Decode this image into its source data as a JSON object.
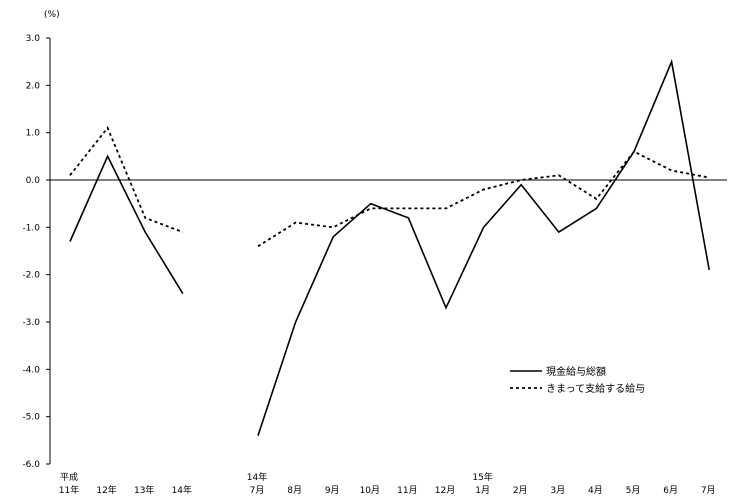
{
  "chart_data": {
    "type": "line",
    "unit_label": "(%)",
    "ylim": [
      -6.0,
      3.0
    ],
    "y_ticks": [
      "3.0",
      "2.0",
      "1.0",
      "0.0",
      "-1.0",
      "-2.0",
      "-3.0",
      "-4.0",
      "-5.0",
      "-6.0"
    ],
    "y_tick_values": [
      3,
      2,
      1,
      0,
      -1,
      -2,
      -3,
      -4,
      -5,
      -6
    ],
    "x_labels": [
      {
        "line1": "平成",
        "line2": "11年"
      },
      {
        "line1": "",
        "line2": "12年"
      },
      {
        "line1": "",
        "line2": "13年"
      },
      {
        "line1": "",
        "line2": "14年"
      },
      {
        "line1": "",
        "line2": ""
      },
      {
        "line1": "14年",
        "line2": "7月"
      },
      {
        "line1": "",
        "line2": "8月"
      },
      {
        "line1": "",
        "line2": "9月"
      },
      {
        "line1": "",
        "line2": "10月"
      },
      {
        "line1": "",
        "line2": "11月"
      },
      {
        "line1": "",
        "line2": "12月"
      },
      {
        "line1": "15年",
        "line2": "1月"
      },
      {
        "line1": "",
        "line2": "2月"
      },
      {
        "line1": "",
        "line2": "3月"
      },
      {
        "line1": "",
        "line2": "4月"
      },
      {
        "line1": "",
        "line2": "5月"
      },
      {
        "line1": "",
        "line2": "6月"
      },
      {
        "line1": "",
        "line2": "7月"
      }
    ],
    "series": [
      {
        "name": "現金給与総額",
        "style": "solid",
        "values": [
          -1.3,
          0.5,
          -1.1,
          -2.4,
          null,
          -5.4,
          -3.0,
          -1.2,
          -0.5,
          -0.8,
          -2.7,
          -1.0,
          -0.1,
          -1.1,
          -0.6,
          0.6,
          2.5,
          -1.9
        ]
      },
      {
        "name": "きまって支給する給与",
        "style": "dotted",
        "values": [
          0.1,
          1.1,
          -0.8,
          -1.1,
          null,
          -1.4,
          -0.9,
          -1.0,
          -0.6,
          -0.6,
          -0.6,
          -0.2,
          0.0,
          0.1,
          -0.4,
          0.6,
          0.2,
          0.05
        ]
      }
    ],
    "legend_position": "lower-right",
    "grid": false
  }
}
